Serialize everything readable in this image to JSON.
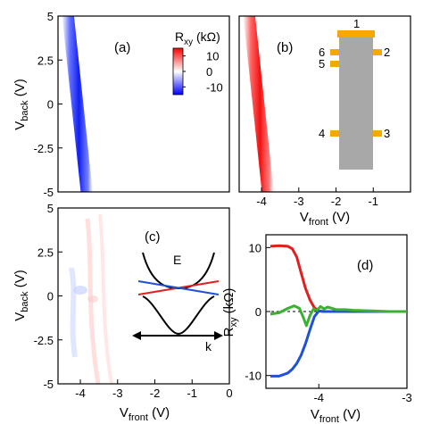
{
  "chart_data": [
    {
      "panel": "a",
      "type": "heatmap",
      "label": "(a)",
      "xlim": [
        -4.6,
        0
      ],
      "ylim": [
        -5,
        5
      ],
      "xticks": [],
      "yticks": [
        5,
        2.5,
        0,
        -2.5,
        -5
      ],
      "ytick_labels": [
        "5",
        "2.5",
        "0",
        "-2.5",
        "-5"
      ],
      "ylabel": "V",
      "ylabel_sub": "back",
      "ylabel_unit": " (V)",
      "stripe": {
        "x_at_top": -4.33,
        "x_at_bottom": -3.83,
        "value": -10
      },
      "colorbar": {
        "title": "R",
        "title_sub": "xy",
        "title_unit": " (kΩ)",
        "ticks": [
          10,
          0,
          -10
        ],
        "tick_labels": [
          "10",
          "0",
          "-10"
        ],
        "range": [
          -15,
          15
        ]
      }
    },
    {
      "panel": "b",
      "type": "heatmap",
      "label": "(b)",
      "xlim": [
        -4.6,
        0
      ],
      "ylim": [
        -5,
        5
      ],
      "xticks": [
        -4,
        -3,
        -2,
        -1
      ],
      "xtick_labels": [
        "-4",
        "-3",
        "-2",
        "-1"
      ],
      "xlabel": "V",
      "xlabel_sub": "front",
      "xlabel_unit": " (V)",
      "stripe": {
        "x_at_top": -4.33,
        "x_at_bottom": -3.83,
        "value": 10
      },
      "device": {
        "contacts": [
          "1",
          "2",
          "3",
          "4",
          "5",
          "6"
        ]
      }
    },
    {
      "panel": "c",
      "type": "heatmap",
      "label": "(c)",
      "xlim": [
        -4.6,
        0
      ],
      "ylim": [
        -5,
        5
      ],
      "xticks": [
        -4,
        -3,
        -2,
        -1,
        0
      ],
      "xtick_labels": [
        "-4",
        "-3",
        "-2",
        "-1",
        "0"
      ],
      "yticks": [
        5,
        2.5,
        0,
        -2.5,
        -5
      ],
      "ytick_labels": [
        "5",
        "2.5",
        "0",
        "-2.5",
        "-5"
      ],
      "xlabel": "V",
      "xlabel_sub": "front",
      "xlabel_unit": " (V)",
      "ylabel": "V",
      "ylabel_sub": "back",
      "ylabel_unit": " (V)",
      "inset": {
        "energy_label": "E",
        "momentum_label": "k"
      }
    },
    {
      "panel": "d",
      "type": "line",
      "label": "(d)",
      "xlim": [
        -4.6,
        -3
      ],
      "ylim": [
        -12,
        12
      ],
      "xticks": [
        -4,
        -3
      ],
      "xtick_labels": [
        "-4",
        "-3"
      ],
      "yticks": [
        10,
        0,
        -10
      ],
      "ytick_labels": [
        "10",
        "0",
        "-10"
      ],
      "xlabel": "V",
      "xlabel_sub": "front",
      "xlabel_unit": " (V)",
      "ylabel": "R",
      "ylabel_sub": "xy",
      "ylabel_unit": " (kΩ)",
      "series": [
        {
          "color": "#e02020",
          "x": [
            -4.55,
            -4.45,
            -4.35,
            -4.3,
            -4.25,
            -4.2,
            -4.15,
            -4.1,
            -4.05,
            -4.0,
            -3.95,
            -3.9,
            -3.8,
            -3.6,
            -3.4,
            -3.2,
            -3.0
          ],
          "y": [
            10.2,
            10.3,
            10.2,
            9.8,
            8.5,
            6.0,
            3.6,
            1.8,
            0.6,
            0.1,
            0.0,
            0.0,
            0.0,
            0.0,
            0.0,
            0.0,
            0.0
          ]
        },
        {
          "color": "#2050d8",
          "x": [
            -4.55,
            -4.45,
            -4.35,
            -4.3,
            -4.25,
            -4.2,
            -4.15,
            -4.1,
            -4.05,
            -4.0,
            -3.95,
            -3.9,
            -3.8,
            -3.6,
            -3.4,
            -3.2,
            -3.0
          ],
          "y": [
            -10.1,
            -10.1,
            -9.6,
            -9.0,
            -8.1,
            -6.8,
            -5.0,
            -2.8,
            -0.8,
            0.1,
            0.0,
            0.0,
            0.0,
            0.0,
            0.0,
            0.0,
            0.0
          ]
        },
        {
          "color": "#3cb030",
          "x": [
            -4.55,
            -4.45,
            -4.35,
            -4.28,
            -4.22,
            -4.18,
            -4.14,
            -4.1,
            -4.06,
            -4.02,
            -3.98,
            -3.94,
            -3.9,
            -3.85,
            -3.8,
            -3.7,
            -3.6,
            -3.4,
            -3.2,
            -3.0
          ],
          "y": [
            -0.4,
            -0.2,
            0.5,
            0.9,
            0.5,
            -0.8,
            -2.2,
            -0.6,
            0.4,
            0.2,
            0.8,
            0.4,
            0.7,
            0.5,
            0.3,
            0.3,
            0.2,
            0.1,
            0.0,
            0.0
          ]
        }
      ]
    }
  ]
}
